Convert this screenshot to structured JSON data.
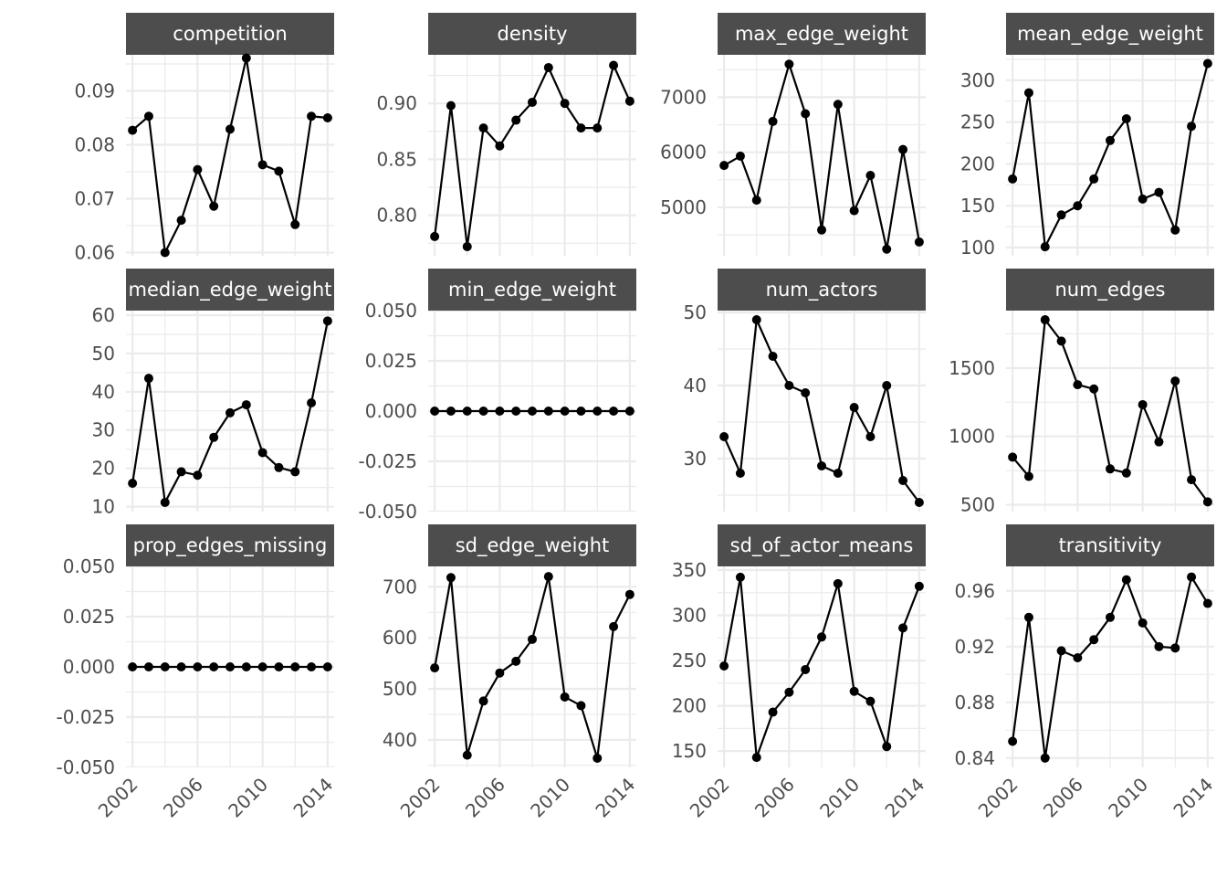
{
  "chart_data": {
    "type": "line",
    "layout": "facet-grid-3x4",
    "x": [
      2002,
      2003,
      2004,
      2005,
      2006,
      2007,
      2008,
      2009,
      2010,
      2011,
      2012,
      2013,
      2014
    ],
    "x_ticks": [
      2002,
      2006,
      2010,
      2014
    ],
    "x_tick_labels": [
      "2002",
      "2006",
      "2010",
      "2014"
    ],
    "xlim": [
      2001.6,
      2014.4
    ],
    "title": "",
    "xlabel": "",
    "ylabel": "",
    "grid": true,
    "free_y_scales": true,
    "line_color": "#000000",
    "strip_color": "#4d4d4d",
    "panels": [
      {
        "name": "competition",
        "ylim": [
          0.0594,
          0.0967
        ],
        "y_ticks": [
          0.06,
          0.07,
          0.08,
          0.09
        ],
        "y_tick_labels": [
          "0.06",
          "0.07",
          "0.08",
          "0.09"
        ],
        "values": [
          0.0827,
          0.0853,
          0.06,
          0.066,
          0.0754,
          0.0686,
          0.0829,
          0.0961,
          0.0763,
          0.0751,
          0.0652,
          0.0853,
          0.085
        ]
      },
      {
        "name": "density",
        "ylim": [
          0.7638,
          0.9434
        ],
        "y_ticks": [
          0.8,
          0.85,
          0.9
        ],
        "y_tick_labels": [
          "0.80",
          "0.85",
          "0.90"
        ],
        "values": [
          0.781,
          0.898,
          0.772,
          0.878,
          0.862,
          0.885,
          0.901,
          0.932,
          0.9,
          0.878,
          0.878,
          0.934,
          0.902
        ]
      },
      {
        "name": "max_edge_weight",
        "ylim": [
          4120,
          7770
        ],
        "y_ticks": [
          5000,
          6000,
          7000
        ],
        "y_tick_labels": [
          "5000",
          "6000",
          "7000"
        ],
        "values": [
          5760,
          5930,
          5130,
          6560,
          7600,
          6700,
          4590,
          6870,
          4940,
          5580,
          4240,
          6050,
          4370
        ]
      },
      {
        "name": "mean_edge_weight",
        "ylim": [
          90.2,
          330.4
        ],
        "y_ticks": [
          100,
          150,
          200,
          250,
          300
        ],
        "y_tick_labels": [
          "100",
          "150",
          "200",
          "250",
          "300"
        ],
        "values": [
          182,
          285,
          101,
          139,
          150,
          182,
          228,
          254,
          158,
          166,
          121,
          245,
          320
        ]
      },
      {
        "name": "median_edge_weight",
        "ylim": [
          8.7,
          61.2
        ],
        "y_ticks": [
          10,
          20,
          30,
          40,
          50,
          60
        ],
        "y_tick_labels": [
          "10",
          "20",
          "30",
          "40",
          "50",
          "60"
        ],
        "values": [
          16.1,
          43.5,
          11.1,
          19.1,
          18.2,
          28.1,
          34.5,
          36.6,
          24.1,
          20.2,
          19.1,
          37.1,
          58.5
        ]
      },
      {
        "name": "min_edge_weight",
        "ylim": [
          -0.05,
          0.05
        ],
        "y_ticks": [
          -0.05,
          -0.025,
          0,
          0.025,
          0.05
        ],
        "y_tick_labels": [
          "-0.050",
          "-0.025",
          "0.000",
          "0.025",
          "0.050"
        ],
        "values": [
          0,
          0,
          0,
          0,
          0,
          0,
          0,
          0,
          0,
          0,
          0,
          0,
          0
        ]
      },
      {
        "name": "num_actors",
        "ylim": [
          22.75,
          50.25
        ],
        "y_ticks": [
          30,
          40,
          50
        ],
        "y_tick_labels": [
          "30",
          "40",
          "50"
        ],
        "values": [
          33,
          28,
          49,
          44,
          40,
          39,
          29,
          28,
          37,
          33,
          40,
          27,
          24
        ]
      },
      {
        "name": "num_edges",
        "ylim": [
          450,
          1920
        ],
        "y_ticks": [
          500,
          1000,
          1500
        ],
        "y_tick_labels": [
          "500",
          "1000",
          "1500"
        ],
        "values": [
          848,
          707,
          1853,
          1697,
          1378,
          1347,
          762,
          732,
          1232,
          960,
          1405,
          683,
          521
        ]
      },
      {
        "name": "prop_edges_missing",
        "ylim": [
          -0.05,
          0.05
        ],
        "y_ticks": [
          -0.05,
          -0.025,
          0,
          0.025,
          0.05
        ],
        "y_tick_labels": [
          "-0.050",
          "-0.025",
          "0.000",
          "0.025",
          "0.050"
        ],
        "values": [
          0,
          0,
          0,
          0,
          0,
          0,
          0,
          0,
          0,
          0,
          0,
          0,
          0
        ]
      },
      {
        "name": "sd_edge_weight",
        "ylim": [
          346,
          740
        ],
        "y_ticks": [
          400,
          500,
          600,
          700
        ],
        "y_tick_labels": [
          "400",
          "500",
          "600",
          "700"
        ],
        "values": [
          541,
          718,
          370,
          476,
          531,
          554,
          597,
          720,
          484,
          467,
          364,
          622,
          685
        ]
      },
      {
        "name": "sd_of_actor_means",
        "ylim": [
          132,
          354
        ],
        "y_ticks": [
          150,
          200,
          250,
          300,
          350
        ],
        "y_tick_labels": [
          "150",
          "200",
          "250",
          "300",
          "350"
        ],
        "values": [
          244,
          342,
          143,
          193,
          215,
          240,
          276,
          335,
          216,
          205,
          155,
          286,
          332
        ]
      },
      {
        "name": "transitivity",
        "ylim": [
          0.8333,
          0.9776
        ],
        "y_ticks": [
          0.84,
          0.88,
          0.92,
          0.96
        ],
        "y_tick_labels": [
          "0.84",
          "0.88",
          "0.92",
          "0.96"
        ],
        "values": [
          0.852,
          0.941,
          0.84,
          0.917,
          0.912,
          0.925,
          0.941,
          0.968,
          0.937,
          0.92,
          0.919,
          0.97,
          0.951
        ]
      }
    ]
  }
}
